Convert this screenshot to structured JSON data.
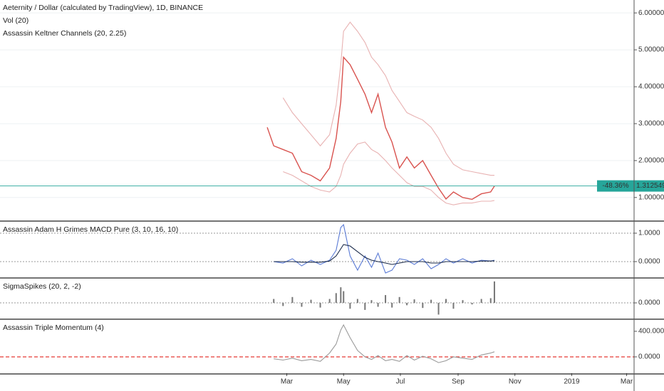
{
  "chart_data": [
    {
      "type": "line",
      "title": "Aeternity / Dollar (calculated by TradingView), 1D, BINANCE",
      "indicators": [
        "Vol (20)",
        "Assassin Keltner Channels (20, 2.25)"
      ],
      "x": [
        38,
        45,
        55,
        65,
        75,
        85,
        95,
        105,
        112,
        117,
        120,
        127,
        135,
        143,
        150,
        157,
        165,
        172,
        180,
        188,
        196,
        205,
        214,
        222,
        230,
        238,
        248,
        258,
        268,
        278,
        282
      ],
      "xlim": [
        -249,
        432
      ],
      "ylim": [
        0.38,
        6.35
      ],
      "yticks": [
        {
          "value": 6,
          "label": "6.00000000"
        },
        {
          "value": 5,
          "label": "5.00000000"
        },
        {
          "value": 4,
          "label": "4.00000000"
        },
        {
          "value": 3,
          "label": "3.00000000"
        },
        {
          "value": 2,
          "label": "2.00000000"
        },
        {
          "value": 1,
          "label": "1.00000000"
        }
      ],
      "grid": "solid",
      "series": [
        {
          "color": "#e8b2b2",
          "values": [
            null,
            null,
            3.7,
            3.3,
            3.0,
            2.7,
            2.4,
            2.7,
            3.5,
            4.6,
            5.5,
            5.75,
            5.5,
            5.2,
            4.8,
            4.6,
            4.3,
            3.9,
            3.6,
            3.3,
            3.2,
            3.1,
            2.9,
            2.6,
            2.2,
            1.9,
            1.75,
            1.7,
            1.65,
            1.6,
            1.6
          ]
        },
        {
          "color": "#e8b2b2",
          "values": [
            null,
            null,
            1.7,
            1.6,
            1.45,
            1.3,
            1.2,
            1.15,
            1.3,
            1.6,
            1.9,
            2.2,
            2.45,
            2.5,
            2.3,
            2.2,
            2.0,
            1.8,
            1.6,
            1.4,
            1.3,
            1.3,
            1.2,
            1.0,
            0.85,
            0.8,
            0.85,
            0.85,
            0.9,
            0.9,
            0.92
          ]
        },
        {
          "color": "#d9534f",
          "values": [
            2.9,
            2.4,
            2.3,
            2.2,
            1.7,
            1.6,
            1.45,
            1.8,
            2.6,
            3.6,
            4.8,
            4.6,
            4.2,
            3.8,
            3.3,
            3.8,
            2.9,
            2.5,
            1.8,
            2.1,
            1.8,
            2.0,
            1.6,
            1.25,
            0.96,
            1.15,
            1.0,
            0.95,
            1.1,
            1.15,
            1.31
          ]
        }
      ],
      "price_tag": {
        "color": "#26a69a",
        "change": {
          "value": -48.36,
          "label": "-48.36%"
        },
        "last": 1.31254994
      }
    },
    {
      "type": "line",
      "title": "Assassin Adam H Grimes MACD Pure (3, 10, 16, 10)",
      "x": [
        38,
        45,
        55,
        65,
        75,
        85,
        95,
        105,
        112,
        117,
        120,
        127,
        135,
        143,
        150,
        157,
        165,
        172,
        180,
        188,
        196,
        205,
        214,
        222,
        230,
        238,
        248,
        258,
        268,
        278,
        282
      ],
      "xlim": [
        -249,
        432
      ],
      "ylim": [
        -0.55,
        1.4
      ],
      "yticks": [
        {
          "value": 1,
          "label": "1.0000"
        },
        {
          "value": 0,
          "label": "0.0000"
        }
      ],
      "grid": "dotted",
      "series": [
        {
          "color": "#5b7bd5",
          "values": [
            null,
            0,
            -0.05,
            0.1,
            -0.15,
            0.05,
            -0.1,
            0.05,
            0.4,
            1.2,
            1.3,
            0.2,
            -0.3,
            0.2,
            -0.2,
            0.3,
            -0.4,
            -0.3,
            0.1,
            0.05,
            -0.1,
            0.1,
            -0.25,
            -0.1,
            0.1,
            -0.05,
            0.1,
            -0.05,
            0.05,
            0.02,
            0.05
          ]
        },
        {
          "color": "#1a2a4a",
          "values": [
            null,
            0,
            0,
            0,
            -0.02,
            -0.02,
            -0.02,
            0.02,
            0.2,
            0.45,
            0.6,
            0.55,
            0.35,
            0.15,
            0.05,
            0,
            -0.05,
            -0.1,
            -0.05,
            0,
            0,
            0,
            -0.05,
            -0.05,
            0,
            0,
            0,
            0,
            0.02,
            0.02,
            0.03
          ]
        }
      ]
    },
    {
      "type": "bar",
      "title": "SigmaSpikes (20, 2, -2)",
      "x": [
        38,
        45,
        55,
        65,
        75,
        85,
        95,
        105,
        112,
        117,
        120,
        127,
        135,
        143,
        150,
        157,
        165,
        172,
        180,
        188,
        196,
        205,
        214,
        222,
        230,
        238,
        248,
        258,
        268,
        278,
        282
      ],
      "xlim": [
        -249,
        432
      ],
      "ylim": [
        -4,
        6.2
      ],
      "yticks": [
        {
          "value": 0,
          "label": "0.0000"
        }
      ],
      "grid": "dotted",
      "series": [
        {
          "color": "#777777",
          "values": [
            null,
            1.0,
            -0.8,
            1.5,
            -1,
            0.8,
            -1.2,
            1,
            2.5,
            4,
            3,
            -1.5,
            1,
            -1.8,
            0.7,
            -1,
            2,
            -1.2,
            1.5,
            -0.6,
            0.9,
            -1.3,
            0.8,
            -3,
            1,
            -1.5,
            0.7,
            -0.4,
            1,
            1.2,
            5.5
          ]
        }
      ]
    },
    {
      "type": "line",
      "title": "Assassin Triple Momentum (4)",
      "x": [
        38,
        45,
        55,
        65,
        75,
        85,
        95,
        105,
        112,
        117,
        120,
        127,
        135,
        143,
        150,
        157,
        165,
        172,
        180,
        188,
        196,
        205,
        214,
        222,
        230,
        238,
        248,
        258,
        268,
        278,
        282
      ],
      "xlim": [
        -249,
        432
      ],
      "ylim": [
        -256,
        578
      ],
      "yticks": [
        {
          "value": 400,
          "label": "400.0000"
        },
        {
          "value": 0,
          "label": "0.0000"
        }
      ],
      "grid": "none",
      "reference_line": {
        "value": 0,
        "color": "#e53935"
      },
      "series": [
        {
          "color": "#9a9a9a",
          "values": [
            null,
            -30,
            -50,
            -20,
            -60,
            -40,
            -70,
            60,
            200,
            420,
            500,
            300,
            100,
            0,
            -40,
            20,
            -60,
            -40,
            -70,
            20,
            -50,
            10,
            -30,
            -90,
            -60,
            0,
            -20,
            -40,
            30,
            60,
            80
          ]
        }
      ],
      "xticks": [
        {
          "value": 59,
          "label": "Mar"
        },
        {
          "value": 120,
          "label": "May"
        },
        {
          "value": 181,
          "label": "Jul"
        },
        {
          "value": 243,
          "label": "Sep"
        },
        {
          "value": 304,
          "label": "Nov"
        },
        {
          "value": 365,
          "label": "2019"
        },
        {
          "value": 424,
          "label": "Mar"
        }
      ]
    }
  ]
}
